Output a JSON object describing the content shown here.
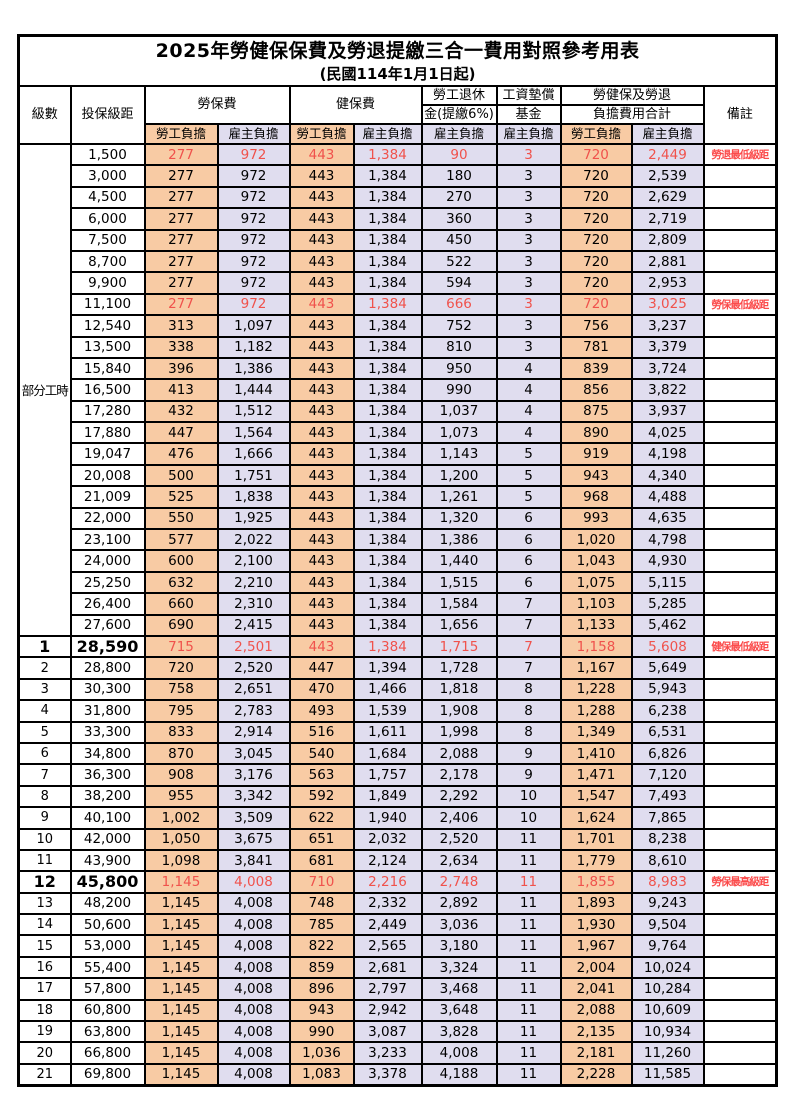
{
  "title": "2025年勞健保保費及勞退提繳三合一費用對照參考用表",
  "subtitle": "(民國114年1月1日起)",
  "colors": {
    "employee_column_bg": "#f8cba4",
    "employer_column_bg": "#e0ddef",
    "highlight_text": "#f0524c",
    "note_text": "#fb4b4b",
    "border": "#000000"
  },
  "header": {
    "level": "級數",
    "bracket": "投保級距",
    "labor_insurance": "勞保費",
    "health_insurance": "健保費",
    "pension_line1": "勞工退休",
    "pension_line2": "金(提繳6%)",
    "wage_fund_line1": "工資墊償",
    "wage_fund_line2": "基金",
    "total_line1": "勞健保及勞退",
    "total_line2": "負擔費用合計",
    "remarks": "備註",
    "employee": "勞工負擔",
    "employer": "雇主負擔"
  },
  "part_time_label": "部分工時",
  "part_time_span": 23,
  "rows": [
    {
      "level": "",
      "bracket": "1,500",
      "values": [
        "277",
        "972",
        "443",
        "1,384",
        "90",
        "3",
        "720",
        "2,449"
      ],
      "note": "勞退最低級距",
      "red": true,
      "bold": false
    },
    {
      "level": "",
      "bracket": "3,000",
      "values": [
        "277",
        "972",
        "443",
        "1,384",
        "180",
        "3",
        "720",
        "2,539"
      ],
      "note": "",
      "red": false,
      "bold": false
    },
    {
      "level": "",
      "bracket": "4,500",
      "values": [
        "277",
        "972",
        "443",
        "1,384",
        "270",
        "3",
        "720",
        "2,629"
      ],
      "note": "",
      "red": false,
      "bold": false
    },
    {
      "level": "",
      "bracket": "6,000",
      "values": [
        "277",
        "972",
        "443",
        "1,384",
        "360",
        "3",
        "720",
        "2,719"
      ],
      "note": "",
      "red": false,
      "bold": false
    },
    {
      "level": "",
      "bracket": "7,500",
      "values": [
        "277",
        "972",
        "443",
        "1,384",
        "450",
        "3",
        "720",
        "2,809"
      ],
      "note": "",
      "red": false,
      "bold": false
    },
    {
      "level": "",
      "bracket": "8,700",
      "values": [
        "277",
        "972",
        "443",
        "1,384",
        "522",
        "3",
        "720",
        "2,881"
      ],
      "note": "",
      "red": false,
      "bold": false
    },
    {
      "level": "",
      "bracket": "9,900",
      "values": [
        "277",
        "972",
        "443",
        "1,384",
        "594",
        "3",
        "720",
        "2,953"
      ],
      "note": "",
      "red": false,
      "bold": false
    },
    {
      "level": "",
      "bracket": "11,100",
      "values": [
        "277",
        "972",
        "443",
        "1,384",
        "666",
        "3",
        "720",
        "3,025"
      ],
      "note": "勞保最低級距",
      "red": true,
      "bold": false
    },
    {
      "level": "",
      "bracket": "12,540",
      "values": [
        "313",
        "1,097",
        "443",
        "1,384",
        "752",
        "3",
        "756",
        "3,237"
      ],
      "note": "",
      "red": false,
      "bold": false
    },
    {
      "level": "",
      "bracket": "13,500",
      "values": [
        "338",
        "1,182",
        "443",
        "1,384",
        "810",
        "3",
        "781",
        "3,379"
      ],
      "note": "",
      "red": false,
      "bold": false
    },
    {
      "level": "",
      "bracket": "15,840",
      "values": [
        "396",
        "1,386",
        "443",
        "1,384",
        "950",
        "4",
        "839",
        "3,724"
      ],
      "note": "",
      "red": false,
      "bold": false
    },
    {
      "level": "",
      "bracket": "16,500",
      "values": [
        "413",
        "1,444",
        "443",
        "1,384",
        "990",
        "4",
        "856",
        "3,822"
      ],
      "note": "",
      "red": false,
      "bold": false
    },
    {
      "level": "",
      "bracket": "17,280",
      "values": [
        "432",
        "1,512",
        "443",
        "1,384",
        "1,037",
        "4",
        "875",
        "3,937"
      ],
      "note": "",
      "red": false,
      "bold": false
    },
    {
      "level": "",
      "bracket": "17,880",
      "values": [
        "447",
        "1,564",
        "443",
        "1,384",
        "1,073",
        "4",
        "890",
        "4,025"
      ],
      "note": "",
      "red": false,
      "bold": false
    },
    {
      "level": "",
      "bracket": "19,047",
      "values": [
        "476",
        "1,666",
        "443",
        "1,384",
        "1,143",
        "5",
        "919",
        "4,198"
      ],
      "note": "",
      "red": false,
      "bold": false
    },
    {
      "level": "",
      "bracket": "20,008",
      "values": [
        "500",
        "1,751",
        "443",
        "1,384",
        "1,200",
        "5",
        "943",
        "4,340"
      ],
      "note": "",
      "red": false,
      "bold": false
    },
    {
      "level": "",
      "bracket": "21,009",
      "values": [
        "525",
        "1,838",
        "443",
        "1,384",
        "1,261",
        "5",
        "968",
        "4,488"
      ],
      "note": "",
      "red": false,
      "bold": false
    },
    {
      "level": "",
      "bracket": "22,000",
      "values": [
        "550",
        "1,925",
        "443",
        "1,384",
        "1,320",
        "6",
        "993",
        "4,635"
      ],
      "note": "",
      "red": false,
      "bold": false
    },
    {
      "level": "",
      "bracket": "23,100",
      "values": [
        "577",
        "2,022",
        "443",
        "1,384",
        "1,386",
        "6",
        "1,020",
        "4,798"
      ],
      "note": "",
      "red": false,
      "bold": false
    },
    {
      "level": "",
      "bracket": "24,000",
      "values": [
        "600",
        "2,100",
        "443",
        "1,384",
        "1,440",
        "6",
        "1,043",
        "4,930"
      ],
      "note": "",
      "red": false,
      "bold": false
    },
    {
      "level": "",
      "bracket": "25,250",
      "values": [
        "632",
        "2,210",
        "443",
        "1,384",
        "1,515",
        "6",
        "1,075",
        "5,115"
      ],
      "note": "",
      "red": false,
      "bold": false
    },
    {
      "level": "",
      "bracket": "26,400",
      "values": [
        "660",
        "2,310",
        "443",
        "1,384",
        "1,584",
        "7",
        "1,103",
        "5,285"
      ],
      "note": "",
      "red": false,
      "bold": false
    },
    {
      "level": "",
      "bracket": "27,600",
      "values": [
        "690",
        "2,415",
        "443",
        "1,384",
        "1,656",
        "7",
        "1,133",
        "5,462"
      ],
      "note": "",
      "red": false,
      "bold": false
    },
    {
      "level": "1",
      "bracket": "28,590",
      "values": [
        "715",
        "2,501",
        "443",
        "1,384",
        "1,715",
        "7",
        "1,158",
        "5,608"
      ],
      "note": "健保最低級距",
      "red": true,
      "bold": true
    },
    {
      "level": "2",
      "bracket": "28,800",
      "values": [
        "720",
        "2,520",
        "447",
        "1,394",
        "1,728",
        "7",
        "1,167",
        "5,649"
      ],
      "note": "",
      "red": false,
      "bold": false
    },
    {
      "level": "3",
      "bracket": "30,300",
      "values": [
        "758",
        "2,651",
        "470",
        "1,466",
        "1,818",
        "8",
        "1,228",
        "5,943"
      ],
      "note": "",
      "red": false,
      "bold": false
    },
    {
      "level": "4",
      "bracket": "31,800",
      "values": [
        "795",
        "2,783",
        "493",
        "1,539",
        "1,908",
        "8",
        "1,288",
        "6,238"
      ],
      "note": "",
      "red": false,
      "bold": false
    },
    {
      "level": "5",
      "bracket": "33,300",
      "values": [
        "833",
        "2,914",
        "516",
        "1,611",
        "1,998",
        "8",
        "1,349",
        "6,531"
      ],
      "note": "",
      "red": false,
      "bold": false
    },
    {
      "level": "6",
      "bracket": "34,800",
      "values": [
        "870",
        "3,045",
        "540",
        "1,684",
        "2,088",
        "9",
        "1,410",
        "6,826"
      ],
      "note": "",
      "red": false,
      "bold": false
    },
    {
      "level": "7",
      "bracket": "36,300",
      "values": [
        "908",
        "3,176",
        "563",
        "1,757",
        "2,178",
        "9",
        "1,471",
        "7,120"
      ],
      "note": "",
      "red": false,
      "bold": false
    },
    {
      "level": "8",
      "bracket": "38,200",
      "values": [
        "955",
        "3,342",
        "592",
        "1,849",
        "2,292",
        "10",
        "1,547",
        "7,493"
      ],
      "note": "",
      "red": false,
      "bold": false
    },
    {
      "level": "9",
      "bracket": "40,100",
      "values": [
        "1,002",
        "3,509",
        "622",
        "1,940",
        "2,406",
        "10",
        "1,624",
        "7,865"
      ],
      "note": "",
      "red": false,
      "bold": false
    },
    {
      "level": "10",
      "bracket": "42,000",
      "values": [
        "1,050",
        "3,675",
        "651",
        "2,032",
        "2,520",
        "11",
        "1,701",
        "8,238"
      ],
      "note": "",
      "red": false,
      "bold": false
    },
    {
      "level": "11",
      "bracket": "43,900",
      "values": [
        "1,098",
        "3,841",
        "681",
        "2,124",
        "2,634",
        "11",
        "1,779",
        "8,610"
      ],
      "note": "",
      "red": false,
      "bold": false
    },
    {
      "level": "12",
      "bracket": "45,800",
      "values": [
        "1,145",
        "4,008",
        "710",
        "2,216",
        "2,748",
        "11",
        "1,855",
        "8,983"
      ],
      "note": "勞保最高級距",
      "red": true,
      "bold": true
    },
    {
      "level": "13",
      "bracket": "48,200",
      "values": [
        "1,145",
        "4,008",
        "748",
        "2,332",
        "2,892",
        "11",
        "1,893",
        "9,243"
      ],
      "note": "",
      "red": false,
      "bold": false
    },
    {
      "level": "14",
      "bracket": "50,600",
      "values": [
        "1,145",
        "4,008",
        "785",
        "2,449",
        "3,036",
        "11",
        "1,930",
        "9,504"
      ],
      "note": "",
      "red": false,
      "bold": false
    },
    {
      "level": "15",
      "bracket": "53,000",
      "values": [
        "1,145",
        "4,008",
        "822",
        "2,565",
        "3,180",
        "11",
        "1,967",
        "9,764"
      ],
      "note": "",
      "red": false,
      "bold": false
    },
    {
      "level": "16",
      "bracket": "55,400",
      "values": [
        "1,145",
        "4,008",
        "859",
        "2,681",
        "3,324",
        "11",
        "2,004",
        "10,024"
      ],
      "note": "",
      "red": false,
      "bold": false
    },
    {
      "level": "17",
      "bracket": "57,800",
      "values": [
        "1,145",
        "4,008",
        "896",
        "2,797",
        "3,468",
        "11",
        "2,041",
        "10,284"
      ],
      "note": "",
      "red": false,
      "bold": false
    },
    {
      "level": "18",
      "bracket": "60,800",
      "values": [
        "1,145",
        "4,008",
        "943",
        "2,942",
        "3,648",
        "11",
        "2,088",
        "10,609"
      ],
      "note": "",
      "red": false,
      "bold": false
    },
    {
      "level": "19",
      "bracket": "63,800",
      "values": [
        "1,145",
        "4,008",
        "990",
        "3,087",
        "3,828",
        "11",
        "2,135",
        "10,934"
      ],
      "note": "",
      "red": false,
      "bold": false
    },
    {
      "level": "20",
      "bracket": "66,800",
      "values": [
        "1,145",
        "4,008",
        "1,036",
        "3,233",
        "4,008",
        "11",
        "2,181",
        "11,260"
      ],
      "note": "",
      "red": false,
      "bold": false
    },
    {
      "level": "21",
      "bracket": "69,800",
      "values": [
        "1,145",
        "4,008",
        "1,083",
        "3,378",
        "4,188",
        "11",
        "2,228",
        "11,585"
      ],
      "note": "",
      "red": false,
      "bold": false
    }
  ]
}
